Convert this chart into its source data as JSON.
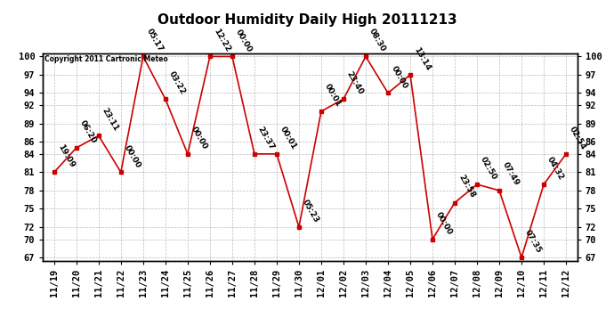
{
  "title": "Outdoor Humidity Daily High 20111213",
  "copyright": "Copyright 2011 Cartronic Meteo",
  "x_labels": [
    "11/19",
    "11/20",
    "11/21",
    "11/22",
    "11/23",
    "11/24",
    "11/25",
    "11/26",
    "11/27",
    "11/28",
    "11/29",
    "11/30",
    "12/01",
    "12/02",
    "12/03",
    "12/04",
    "12/05",
    "12/06",
    "12/07",
    "12/08",
    "12/09",
    "12/10",
    "12/11",
    "12/12"
  ],
  "y_values": [
    81,
    85,
    87,
    81,
    100,
    93,
    84,
    100,
    100,
    84,
    84,
    72,
    91,
    93,
    100,
    94,
    97,
    70,
    76,
    79,
    78,
    67,
    79,
    84
  ],
  "point_labels": [
    "19:09",
    "06:20",
    "23:11",
    "00:00",
    "05:17",
    "03:22",
    "00:00",
    "12:22",
    "00:00",
    "23:37",
    "00:01",
    "05:23",
    "00:01",
    "23:40",
    "08:30",
    "00:00",
    "13:14",
    "00:00",
    "23:58",
    "02:50",
    "07:49",
    "07:35",
    "04:32",
    "02:54"
  ],
  "line_color": "#cc0000",
  "marker_color": "#cc0000",
  "bg_color": "#ffffff",
  "grid_color": "#bbbbbb",
  "ylim_min": 66.5,
  "ylim_max": 100.5,
  "yticks": [
    67,
    70,
    72,
    75,
    78,
    81,
    84,
    86,
    89,
    92,
    94,
    97,
    100
  ],
  "title_fontsize": 11,
  "label_fontsize": 6.5,
  "tick_fontsize": 7.5
}
